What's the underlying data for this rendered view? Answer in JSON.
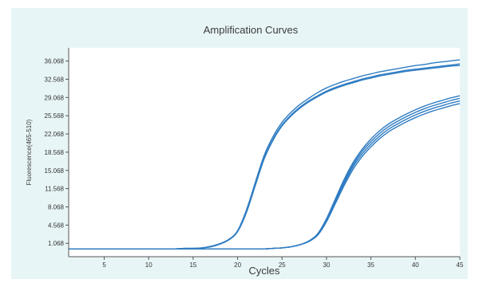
{
  "colors": {
    "panel_background": "#e8f5f7",
    "plot_background": "#ffffff",
    "curve": "#2f7cc2",
    "axis": "#555555"
  },
  "chart_data": {
    "type": "line",
    "title": "Amplification Curves",
    "xlabel": "Cycles",
    "ylabel": "Fluorescence(465-510)",
    "xlim": [
      1,
      45
    ],
    "ylim": [
      -1.5,
      38.6
    ],
    "x_ticks": [
      5,
      10,
      15,
      20,
      25,
      30,
      35,
      40,
      45
    ],
    "y_ticks": [
      1.068,
      4.568,
      8.068,
      11.568,
      15.068,
      18.568,
      22.068,
      25.568,
      29.068,
      32.568,
      36.068
    ],
    "y_tick_labels": [
      "1.068",
      "4.568",
      "8.068",
      "11.568",
      "15.068",
      "18.568",
      "22.068",
      "25.568",
      "29.068",
      "32.568",
      "36.068"
    ],
    "grid": false,
    "legend": false,
    "x": [
      1,
      2,
      3,
      4,
      5,
      6,
      7,
      8,
      9,
      10,
      11,
      12,
      13,
      14,
      15,
      16,
      17,
      18,
      19,
      20,
      21,
      22,
      23,
      24,
      25,
      26,
      27,
      28,
      29,
      30,
      31,
      32,
      33,
      34,
      35,
      36,
      37,
      38,
      39,
      40,
      41,
      42,
      43,
      44,
      45
    ],
    "series": [
      {
        "values": [
          0.0,
          0.0,
          0.0,
          0.0,
          0.0,
          0.0,
          0.0,
          0.0,
          0.0,
          0.0,
          0.0,
          0.0,
          0.0,
          0.1,
          0.1,
          0.2,
          0.5,
          1.0,
          1.8,
          3.5,
          7.5,
          12.8,
          18.0,
          21.6,
          24.3,
          26.2,
          27.7,
          28.9,
          30.0,
          30.9,
          31.6,
          32.2,
          32.7,
          33.2,
          33.6,
          34.0,
          34.3,
          34.6,
          34.9,
          35.2,
          35.4,
          35.7,
          35.9,
          36.1,
          36.3
        ]
      },
      {
        "values": [
          0.0,
          0.0,
          0.0,
          0.0,
          0.0,
          0.0,
          0.0,
          0.0,
          0.0,
          0.0,
          0.0,
          0.0,
          0.0,
          0.1,
          0.1,
          0.2,
          0.5,
          1.0,
          1.8,
          3.4,
          7.2,
          12.4,
          17.5,
          21.1,
          23.8,
          25.7,
          27.2,
          28.4,
          29.4,
          30.3,
          31.0,
          31.6,
          32.1,
          32.6,
          33.0,
          33.4,
          33.7,
          34.0,
          34.3,
          34.5,
          34.7,
          34.9,
          35.1,
          35.3,
          35.5
        ]
      },
      {
        "values": [
          0.0,
          0.0,
          0.0,
          0.0,
          0.0,
          0.0,
          0.0,
          0.0,
          0.0,
          0.0,
          0.0,
          0.0,
          0.0,
          0.1,
          0.1,
          0.2,
          0.4,
          0.9,
          1.7,
          3.3,
          7.0,
          12.2,
          17.3,
          20.9,
          23.6,
          25.5,
          27.0,
          28.2,
          29.2,
          30.1,
          30.8,
          31.4,
          31.9,
          32.4,
          32.8,
          33.2,
          33.5,
          33.8,
          34.1,
          34.3,
          34.5,
          34.7,
          34.9,
          35.1,
          35.2
        ]
      },
      {
        "values": [
          0.0,
          0.0,
          0.0,
          0.0,
          0.0,
          0.0,
          0.0,
          0.0,
          0.0,
          0.0,
          0.0,
          0.0,
          0.0,
          0.0,
          0.0,
          0.0,
          0.0,
          0.0,
          0.0,
          0.0,
          0.0,
          0.0,
          0.0,
          0.1,
          0.2,
          0.4,
          0.8,
          1.5,
          2.9,
          5.8,
          9.6,
          13.4,
          16.6,
          19.1,
          21.1,
          22.7,
          24.0,
          25.0,
          25.9,
          26.7,
          27.4,
          28.0,
          28.5,
          29.0,
          29.4
        ]
      },
      {
        "values": [
          0.0,
          0.0,
          0.0,
          0.0,
          0.0,
          0.0,
          0.0,
          0.0,
          0.0,
          0.0,
          0.0,
          0.0,
          0.0,
          0.0,
          0.0,
          0.0,
          0.0,
          0.0,
          0.0,
          0.0,
          0.0,
          0.0,
          0.0,
          0.1,
          0.2,
          0.4,
          0.8,
          1.5,
          2.8,
          5.6,
          9.3,
          13.0,
          16.2,
          18.7,
          20.6,
          22.2,
          23.5,
          24.5,
          25.4,
          26.2,
          26.9,
          27.5,
          28.0,
          28.5,
          28.9
        ]
      },
      {
        "values": [
          0.0,
          0.0,
          0.0,
          0.0,
          0.0,
          0.0,
          0.0,
          0.0,
          0.0,
          0.0,
          0.0,
          0.0,
          0.0,
          0.0,
          0.0,
          0.0,
          0.0,
          0.0,
          0.0,
          0.0,
          0.0,
          0.0,
          0.0,
          0.1,
          0.2,
          0.4,
          0.8,
          1.4,
          2.7,
          5.4,
          9.0,
          12.6,
          15.8,
          18.2,
          20.1,
          21.7,
          23.0,
          24.0,
          24.9,
          25.7,
          26.4,
          27.0,
          27.5,
          28.0,
          28.4
        ]
      },
      {
        "values": [
          0.0,
          0.0,
          0.0,
          0.0,
          0.0,
          0.0,
          0.0,
          0.0,
          0.0,
          0.0,
          0.0,
          0.0,
          0.0,
          0.0,
          0.0,
          0.0,
          0.0,
          0.0,
          0.0,
          0.0,
          0.0,
          0.0,
          0.0,
          0.1,
          0.2,
          0.4,
          0.8,
          1.4,
          2.6,
          5.2,
          8.7,
          12.2,
          15.3,
          17.7,
          19.6,
          21.2,
          22.5,
          23.5,
          24.4,
          25.2,
          25.9,
          26.5,
          27.0,
          27.5,
          27.9
        ]
      }
    ]
  }
}
